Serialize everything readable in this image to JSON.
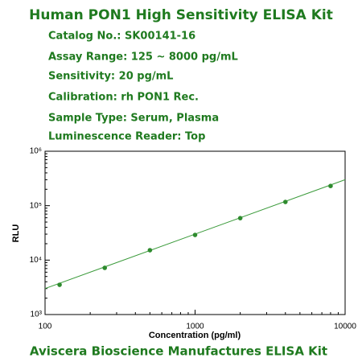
{
  "header": {
    "title": "Human PON1 High Sensitivity ELISA Kit",
    "lines": [
      "Catalog No.: SK00141-16",
      "Assay Range: 125 ~ 8000 pg/mL",
      "Sensitivity: 20 pg/mL",
      "Calibration: rh PON1 Rec.",
      "Sample Type: Serum, Plasma",
      "Luminescence Reader: Top"
    ],
    "footer": "Aviscera Bioscience Manufactures ELISA Kit"
  },
  "chart_data": {
    "type": "scatter",
    "x_label": "Concentration (pg/ml)",
    "y_label": "RLU",
    "x": [
      125,
      250,
      500,
      1000,
      2000,
      4000,
      8000
    ],
    "values": [
      3520,
      7200,
      15200,
      29000,
      59000,
      117000,
      230000
    ],
    "color": "#2e8b2e",
    "fit": {
      "x": [
        100,
        10000
      ],
      "values": [
        3000,
        300000
      ],
      "color": "#3a9a3a"
    },
    "xscale": "log",
    "yscale": "log",
    "xlim": [
      100,
      10000
    ],
    "ylim": [
      1000,
      1000000
    ],
    "xticks": [
      100,
      1000,
      10000
    ],
    "yticks": [
      {
        "value": 1000,
        "label": "10³"
      },
      {
        "value": 10000,
        "label": "10⁴"
      },
      {
        "value": 100000,
        "label": "10⁵"
      },
      {
        "value": 1000000,
        "label": "10⁶"
      }
    ]
  }
}
